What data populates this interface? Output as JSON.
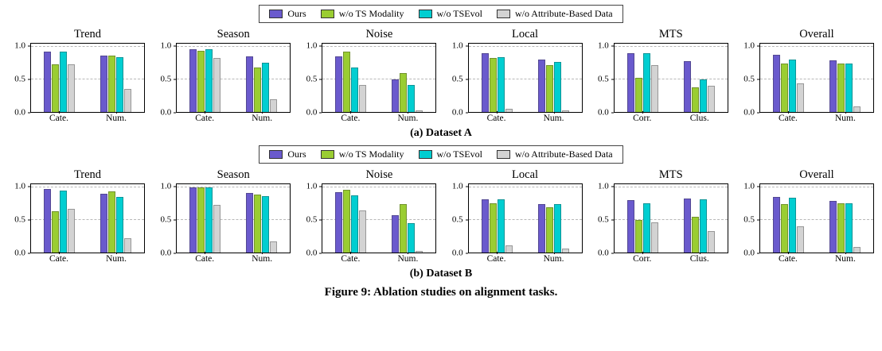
{
  "figure": {
    "caption": "Figure 9: Ablation studies on alignment tasks."
  },
  "legend": {
    "entries": [
      {
        "label": "Ours",
        "color": "#6A5ACD"
      },
      {
        "label": "w/o TS Modality",
        "color": "#9ACD32"
      },
      {
        "label": "w/o TSEvol",
        "color": "#00CED1"
      },
      {
        "label": "w/o Attribute-Based Data",
        "color": "#D3D3D3"
      }
    ]
  },
  "chart_data": {
    "type": "bar",
    "ylim": [
      0,
      1.05
    ],
    "yticks": [
      0.0,
      0.5,
      1.0
    ],
    "grid": true,
    "legend_position": "top",
    "series_names": [
      "Ours",
      "w/o TS Modality",
      "w/o TSEvol",
      "w/o Attribute-Based Data"
    ],
    "rows": [
      {
        "caption": "(a) Dataset A",
        "subplots": [
          {
            "title": "Trend",
            "categories": [
              "Cate.",
              "Num."
            ],
            "series": [
              {
                "name": "Ours",
                "values": [
                  0.93,
                  0.87
                ]
              },
              {
                "name": "w/o TS Modality",
                "values": [
                  0.73,
                  0.87
                ]
              },
              {
                "name": "w/o TSEvol",
                "values": [
                  0.93,
                  0.84
                ]
              },
              {
                "name": "w/o Attribute-Based Data",
                "values": [
                  0.73,
                  0.35
                ]
              }
            ]
          },
          {
            "title": "Season",
            "categories": [
              "Cate.",
              "Num."
            ],
            "series": [
              {
                "name": "Ours",
                "values": [
                  0.97,
                  0.85
                ]
              },
              {
                "name": "w/o TS Modality",
                "values": [
                  0.94,
                  0.68
                ]
              },
              {
                "name": "w/o TSEvol",
                "values": [
                  0.97,
                  0.76
                ]
              },
              {
                "name": "w/o Attribute-Based Data",
                "values": [
                  0.83,
                  0.2
                ]
              }
            ]
          },
          {
            "title": "Noise",
            "categories": [
              "Cate.",
              "Num."
            ],
            "series": [
              {
                "name": "Ours",
                "values": [
                  0.85,
                  0.5
                ]
              },
              {
                "name": "w/o TS Modality",
                "values": [
                  0.93,
                  0.6
                ]
              },
              {
                "name": "w/o TSEvol",
                "values": [
                  0.68,
                  0.42
                ]
              },
              {
                "name": "w/o Attribute-Based Data",
                "values": [
                  0.42,
                  0.03
                ]
              }
            ]
          },
          {
            "title": "Local",
            "categories": [
              "Cate.",
              "Num."
            ],
            "series": [
              {
                "name": "Ours",
                "values": [
                  0.9,
                  0.81
                ]
              },
              {
                "name": "w/o TS Modality",
                "values": [
                  0.83,
                  0.72
                ]
              },
              {
                "name": "w/o TSEvol",
                "values": [
                  0.84,
                  0.77
                ]
              },
              {
                "name": "w/o Attribute-Based Data",
                "values": [
                  0.05,
                  0.02
                ]
              }
            ]
          },
          {
            "title": "MTS",
            "categories": [
              "Corr.",
              "Clus."
            ],
            "series": [
              {
                "name": "Ours",
                "values": [
                  0.9,
                  0.78
                ]
              },
              {
                "name": "w/o TS Modality",
                "values": [
                  0.52,
                  0.38
                ]
              },
              {
                "name": "w/o TSEvol",
                "values": [
                  0.9,
                  0.5
                ]
              },
              {
                "name": "w/o Attribute-Based Data",
                "values": [
                  0.72,
                  0.4
                ]
              }
            ]
          },
          {
            "title": "Overall",
            "categories": [
              "Cate.",
              "Num."
            ],
            "series": [
              {
                "name": "Ours",
                "values": [
                  0.88,
                  0.79
                ]
              },
              {
                "name": "w/o TS Modality",
                "values": [
                  0.75,
                  0.74
                ]
              },
              {
                "name": "w/o TSEvol",
                "values": [
                  0.8,
                  0.74
                ]
              },
              {
                "name": "w/o Attribute-Based Data",
                "values": [
                  0.44,
                  0.08
                ]
              }
            ]
          }
        ]
      },
      {
        "caption": "(b) Dataset B",
        "subplots": [
          {
            "title": "Trend",
            "categories": [
              "Cate.",
              "Num."
            ],
            "series": [
              {
                "name": "Ours",
                "values": [
                  0.98,
                  0.9
                ]
              },
              {
                "name": "w/o TS Modality",
                "values": [
                  0.63,
                  0.94
                ]
              },
              {
                "name": "w/o TSEvol",
                "values": [
                  0.95,
                  0.85
                ]
              },
              {
                "name": "w/o Attribute-Based Data",
                "values": [
                  0.67,
                  0.22
                ]
              }
            ]
          },
          {
            "title": "Season",
            "categories": [
              "Cate.",
              "Num."
            ],
            "series": [
              {
                "name": "Ours",
                "values": [
                  1.0,
                  0.92
                ]
              },
              {
                "name": "w/o TS Modality",
                "values": [
                  1.0,
                  0.89
                ]
              },
              {
                "name": "w/o TSEvol",
                "values": [
                  1.0,
                  0.87
                ]
              },
              {
                "name": "w/o Attribute-Based Data",
                "values": [
                  0.73,
                  0.17
                ]
              }
            ]
          },
          {
            "title": "Noise",
            "categories": [
              "Cate.",
              "Num."
            ],
            "series": [
              {
                "name": "Ours",
                "values": [
                  0.93,
                  0.57
                ]
              },
              {
                "name": "w/o TS Modality",
                "values": [
                  0.97,
                  0.74
                ]
              },
              {
                "name": "w/o TSEvol",
                "values": [
                  0.88,
                  0.45
                ]
              },
              {
                "name": "w/o Attribute-Based Data",
                "values": [
                  0.65,
                  0.03
                ]
              }
            ]
          },
          {
            "title": "Local",
            "categories": [
              "Cate.",
              "Num."
            ],
            "series": [
              {
                "name": "Ours",
                "values": [
                  0.82,
                  0.75
                ]
              },
              {
                "name": "w/o TS Modality",
                "values": [
                  0.76,
                  0.7
                ]
              },
              {
                "name": "w/o TSEvol",
                "values": [
                  0.82,
                  0.75
                ]
              },
              {
                "name": "w/o Attribute-Based Data",
                "values": [
                  0.11,
                  0.06
                ]
              }
            ]
          },
          {
            "title": "MTS",
            "categories": [
              "Corr.",
              "Clus."
            ],
            "series": [
              {
                "name": "Ours",
                "values": [
                  0.81,
                  0.83
                ]
              },
              {
                "name": "w/o TS Modality",
                "values": [
                  0.5,
                  0.55
                ]
              },
              {
                "name": "w/o TSEvol",
                "values": [
                  0.76,
                  0.82
                ]
              },
              {
                "name": "w/o Attribute-Based Data",
                "values": [
                  0.46,
                  0.33
                ]
              }
            ]
          },
          {
            "title": "Overall",
            "categories": [
              "Cate.",
              "Num."
            ],
            "series": [
              {
                "name": "Ours",
                "values": [
                  0.86,
                  0.79
                ]
              },
              {
                "name": "w/o TS Modality",
                "values": [
                  0.74,
                  0.76
                ]
              },
              {
                "name": "w/o TSEvol",
                "values": [
                  0.84,
                  0.76
                ]
              },
              {
                "name": "w/o Attribute-Based Data",
                "values": [
                  0.4,
                  0.09
                ]
              }
            ]
          }
        ]
      }
    ]
  }
}
